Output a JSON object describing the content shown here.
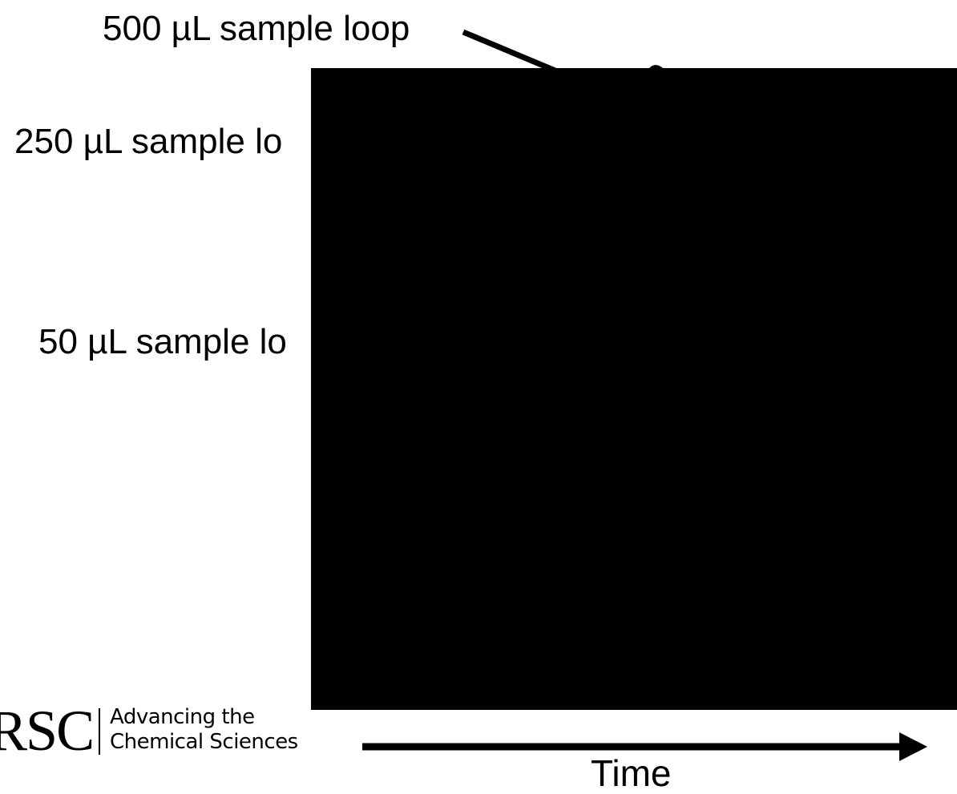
{
  "labels": {
    "loop_500": "500 µL sample loop",
    "loop_250": "250 µL sample lo",
    "loop_50": "50 µL sample lo"
  },
  "axis": {
    "x_label": "Time"
  },
  "logo": {
    "mark": "RSC",
    "tagline_line1": "Advancing the",
    "tagline_line2": "Chemical Sciences"
  },
  "colors": {
    "ink": "#000000",
    "background": "#ffffff"
  }
}
